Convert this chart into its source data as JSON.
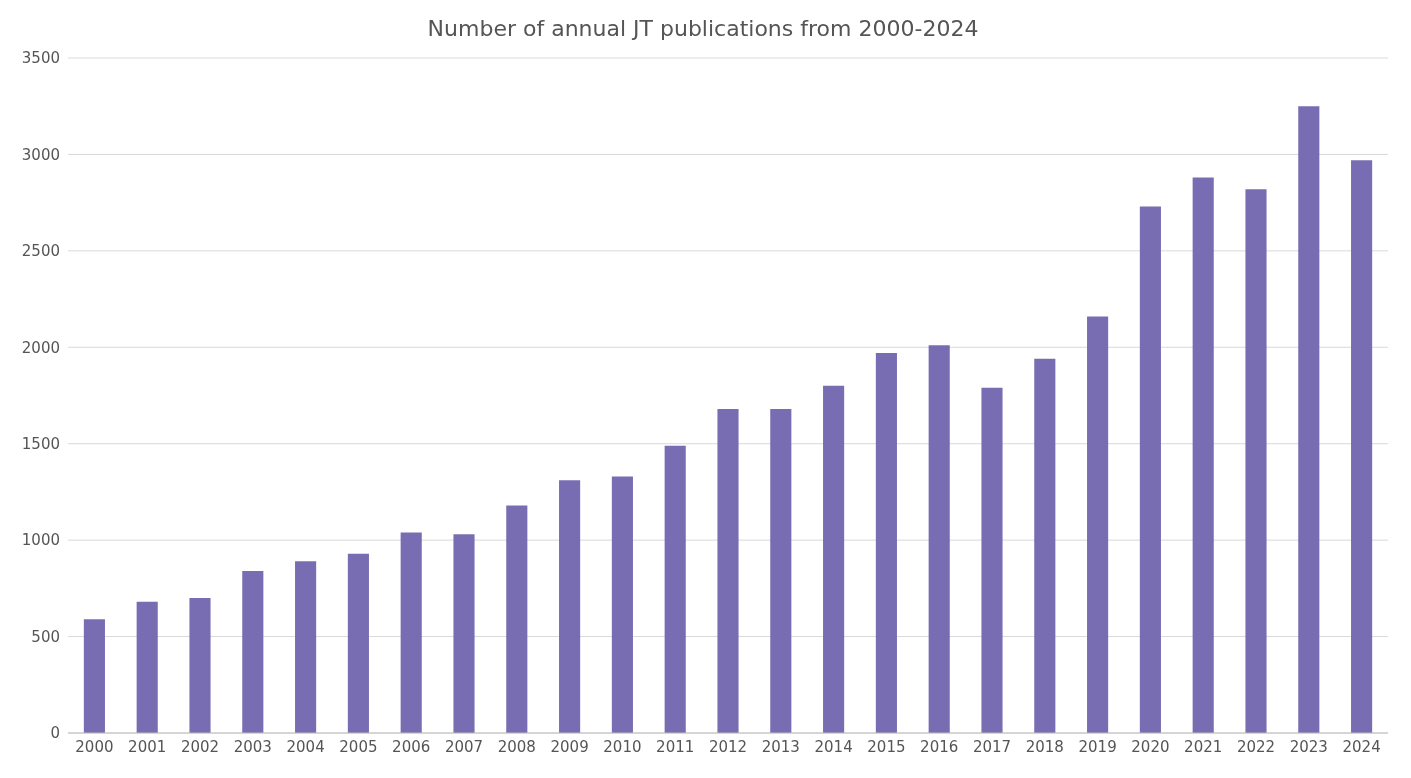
{
  "chart_data": {
    "type": "bar",
    "title": "Number of annual JT publications from 2000-2024",
    "categories": [
      "2000",
      "2001",
      "2002",
      "2003",
      "2004",
      "2005",
      "2006",
      "2007",
      "2008",
      "2009",
      "2010",
      "2011",
      "2012",
      "2013",
      "2014",
      "2015",
      "2016",
      "2017",
      "2018",
      "2019",
      "2020",
      "2021",
      "2022",
      "2023",
      "2024"
    ],
    "values": [
      590,
      680,
      700,
      840,
      890,
      930,
      1040,
      1030,
      1180,
      1310,
      1330,
      1490,
      1680,
      1680,
      1800,
      1970,
      2010,
      1790,
      1940,
      2160,
      2730,
      2880,
      2820,
      3250,
      2970
    ],
    "color": "#786cb2",
    "ylim": [
      0,
      3500
    ],
    "yticks": [
      0,
      500,
      1000,
      1500,
      2000,
      2500,
      3000,
      3500
    ],
    "grid": "y"
  }
}
